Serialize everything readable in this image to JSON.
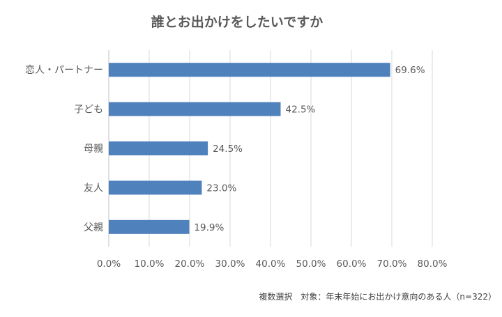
{
  "chart_data": {
    "type": "bar",
    "orientation": "horizontal",
    "title": "誰とお出かけをしたいですか",
    "categories": [
      "恋人・パートナー",
      "子ども",
      "母親",
      "友人",
      "父親"
    ],
    "values": [
      69.6,
      42.5,
      24.5,
      23.0,
      19.9
    ],
    "value_labels": [
      "69.6%",
      "42.5%",
      "24.5%",
      "23.0%",
      "19.9%"
    ],
    "x_ticks": [
      "0.0%",
      "10.0%",
      "20.0%",
      "30.0%",
      "40.0%",
      "50.0%",
      "60.0%",
      "70.0%",
      "80.0%"
    ],
    "xlim": [
      0,
      80
    ],
    "grid": true,
    "legend": "none",
    "bar_color": "#4f81bd",
    "note": "複数選択　対象：年末年始にお出かけ意向のある人（n=322）"
  }
}
